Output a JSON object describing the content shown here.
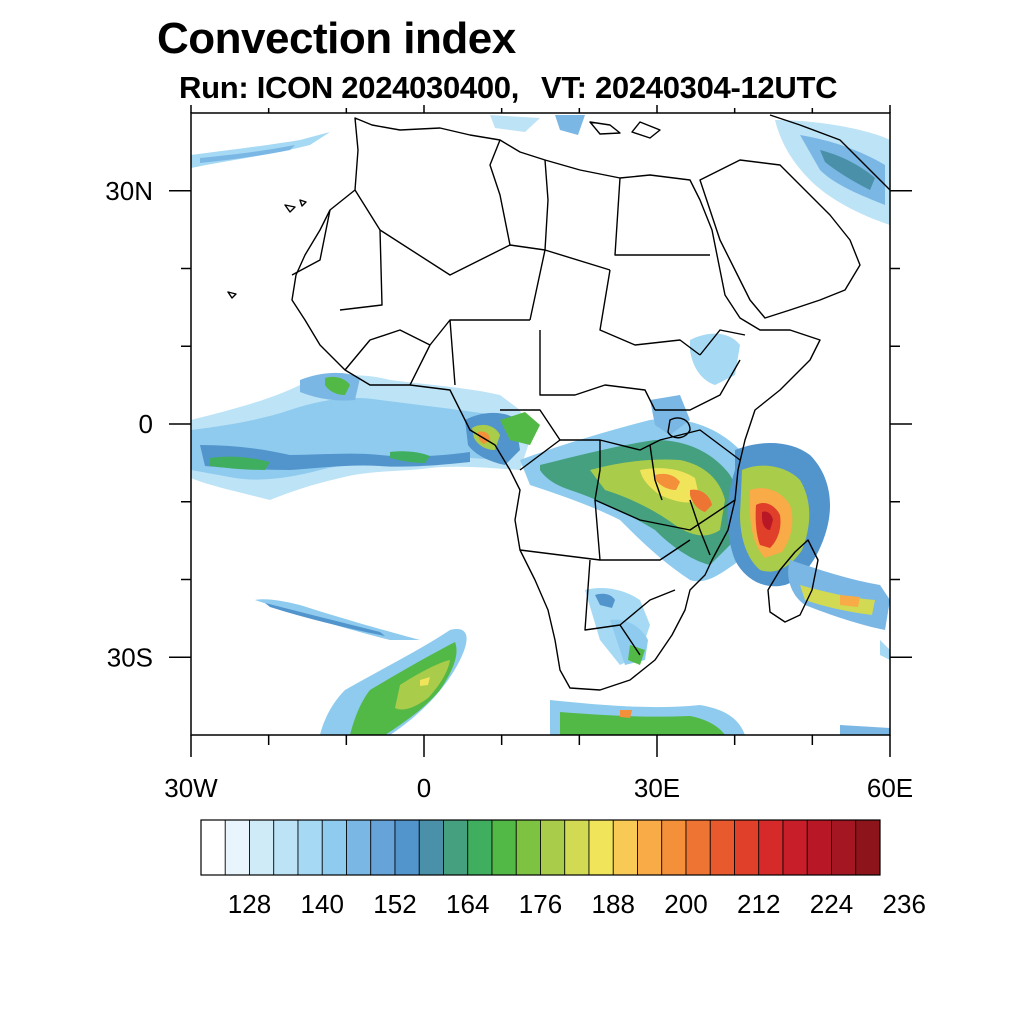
{
  "header": {
    "title": "Convection index",
    "run_label": "Run: ICON 2024030400,",
    "valid_label": "VT: 20240304-12UTC"
  },
  "map": {
    "region": "Africa",
    "lon_range": [
      -30,
      60
    ],
    "lat_range": [
      -40,
      40
    ],
    "lon_ticks": [
      {
        "value": -30,
        "label": "30W"
      },
      {
        "value": 0,
        "label": "0"
      },
      {
        "value": 30,
        "label": "30E"
      },
      {
        "value": 60,
        "label": "60E"
      }
    ],
    "lat_ticks": [
      {
        "value": 30,
        "label": "30N"
      },
      {
        "value": 0,
        "label": "0"
      },
      {
        "value": -30,
        "label": "30S"
      }
    ],
    "minor_lon_ticks": [
      -20,
      -10,
      10,
      20,
      40,
      50
    ],
    "minor_lat_ticks": [
      20,
      10,
      -10,
      -20
    ]
  },
  "colorbar": {
    "colors": [
      "#ffffff",
      "#e8f5fc",
      "#d0ebf8",
      "#bde3f6",
      "#a5d9f4",
      "#8ecbee",
      "#7ab7e4",
      "#66a3d9",
      "#5294cc",
      "#4a90a8",
      "#44a07e",
      "#3fae5f",
      "#52b947",
      "#7ec242",
      "#a9cc4a",
      "#d1da52",
      "#f0e45a",
      "#f8ca55",
      "#f8ab46",
      "#f48f3a",
      "#ee7433",
      "#e85a2e",
      "#e04029",
      "#d62a2a",
      "#c81e2a",
      "#b81826",
      "#a41621",
      "#8e141c"
    ],
    "labels": [
      "128",
      "140",
      "152",
      "164",
      "176",
      "188",
      "200",
      "212",
      "224",
      "236"
    ],
    "label_every": 3,
    "label_first_boundary": 2
  }
}
